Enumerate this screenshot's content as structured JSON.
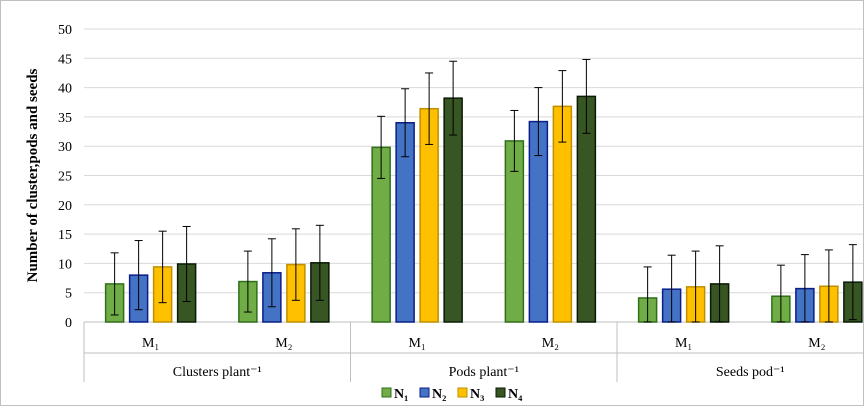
{
  "chart_data": {
    "type": "bar",
    "ylabel": "Number of cluster,pods and seeds",
    "ylim": [
      0,
      50
    ],
    "yticks": [
      0,
      5,
      10,
      15,
      20,
      25,
      30,
      35,
      40,
      45,
      50
    ],
    "groups": [
      {
        "label": "Clusters plant⁻¹",
        "categories": [
          "M₁",
          "M₂"
        ]
      },
      {
        "label": "Pods plant⁻¹",
        "categories": [
          "M₁",
          "M₂"
        ]
      },
      {
        "label": "Seeds pod⁻¹",
        "categories": [
          "M₁",
          "M₂"
        ]
      }
    ],
    "categories": [
      "Clusters plant⁻¹ M₁",
      "Clusters plant⁻¹ M₂",
      "Pods plant⁻¹ M₁",
      "Pods plant⁻¹ M₂",
      "Seeds pod⁻¹ M₁",
      "Seeds pod⁻¹ M₂"
    ],
    "series": [
      {
        "name": "N₁",
        "color": "#70ad47",
        "border": "#2f6f1a",
        "values": [
          6.5,
          6.9,
          29.8,
          30.9,
          4.1,
          4.4
        ],
        "errors": [
          5.3,
          5.2,
          5.3,
          5.2,
          5.3,
          5.3
        ]
      },
      {
        "name": "N₂",
        "color": "#4472c4",
        "border": "#0a1f8a",
        "values": [
          8.0,
          8.4,
          34.0,
          34.2,
          5.6,
          5.7
        ],
        "errors": [
          5.9,
          5.8,
          5.8,
          5.8,
          5.8,
          5.8
        ]
      },
      {
        "name": "N₃",
        "color": "#ffc000",
        "border": "#bf8f00",
        "values": [
          9.4,
          9.8,
          36.4,
          36.8,
          6.0,
          6.1
        ],
        "errors": [
          6.1,
          6.1,
          6.1,
          6.1,
          6.1,
          6.2
        ]
      },
      {
        "name": "N₄",
        "color": "#375623",
        "border": "#0a1a05",
        "values": [
          9.9,
          10.1,
          38.2,
          38.5,
          6.5,
          6.8
        ],
        "errors": [
          6.4,
          6.4,
          6.3,
          6.3,
          6.5,
          6.4
        ]
      }
    ],
    "legend": "bottom-center",
    "grid": true
  },
  "colors": {
    "grid": "#d9d9d9",
    "axis": "#bfbfbf"
  }
}
